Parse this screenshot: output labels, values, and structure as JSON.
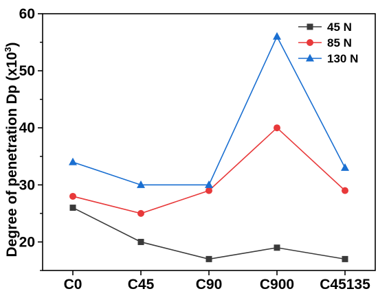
{
  "chart_data": {
    "type": "line",
    "categories": [
      "C0",
      "C45",
      "C90",
      "C900",
      "C45135"
    ],
    "series": [
      {
        "name": "45 N",
        "values": [
          26,
          20,
          17,
          19,
          17
        ],
        "color": "#3a3a3a",
        "marker": "square"
      },
      {
        "name": "85 N",
        "values": [
          28,
          25,
          29,
          40,
          29
        ],
        "color": "#e8393a",
        "marker": "circle"
      },
      {
        "name": "130 N",
        "values": [
          34,
          30,
          30,
          56,
          33
        ],
        "color": "#1a6fd1",
        "marker": "triangle"
      }
    ],
    "ylabel_prefix": "Degree of penetration Dp (x10",
    "ylabel_exponent": "3",
    "ylabel_suffix": ")",
    "xlabel": "",
    "title": "",
    "ylim": [
      15,
      60
    ],
    "yticks": [
      "20",
      "30",
      "40",
      "50",
      "60"
    ],
    "grid": false,
    "legend_position": "top-right"
  }
}
